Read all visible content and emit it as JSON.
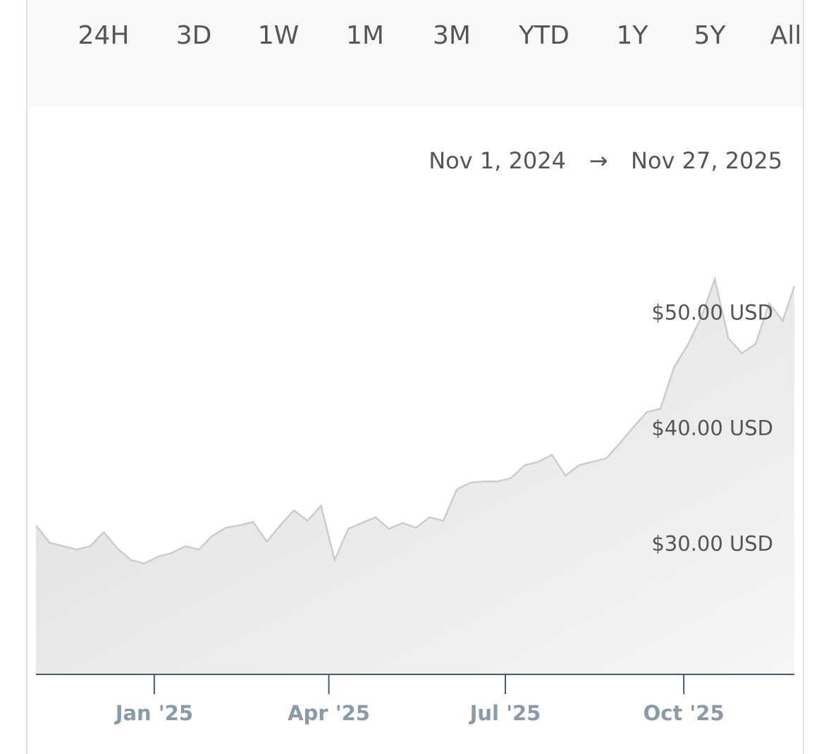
{
  "tabs": [
    "24H",
    "3D",
    "1W",
    "1M",
    "3M",
    "YTD",
    "1Y",
    "5Y",
    "All"
  ],
  "active_tab_index": 6,
  "range_arrow": "→",
  "chart_data": {
    "type": "area",
    "color": "#cccccc",
    "x": [
      "Nov 1, 2024",
      "Nov 8, 2024",
      "Nov 15, 2024",
      "Nov 22, 2024",
      "Nov 29, 2024",
      "Dec 6, 2024",
      "Dec 13, 2024",
      "Dec 20, 2024",
      "Dec 27, 2024",
      "Jan 3, 2025",
      "Jan 10, 2025",
      "Jan 17, 2025",
      "Jan 24, 2025",
      "Jan 31, 2025",
      "Feb 7, 2025",
      "Feb 14, 2025",
      "Feb 21, 2025",
      "Feb 28, 2025",
      "Mar 7, 2025",
      "Mar 14, 2025",
      "Mar 21, 2025",
      "Mar 28, 2025",
      "Apr 4, 2025",
      "Apr 11, 2025",
      "Apr 18, 2025",
      "Apr 25, 2025",
      "May 2, 2025",
      "May 9, 2025",
      "May 16, 2025",
      "May 23, 2025",
      "May 30, 2025",
      "Jun 6, 2025",
      "Jun 13, 2025",
      "Jun 20, 2025",
      "Jun 27, 2025",
      "Jul 4, 2025",
      "Jul 11, 2025",
      "Jul 18, 2025",
      "Jul 25, 2025",
      "Aug 1, 2025",
      "Aug 8, 2025",
      "Aug 15, 2025",
      "Aug 22, 2025",
      "Aug 29, 2025",
      "Sep 5, 2025",
      "Sep 12, 2025",
      "Sep 19, 2025",
      "Sep 26, 2025",
      "Oct 3, 2025",
      "Oct 10, 2025",
      "Oct 17, 2025",
      "Oct 24, 2025",
      "Oct 31, 2025",
      "Nov 7, 2025",
      "Nov 14, 2025",
      "Nov 21, 2025",
      "Nov 27, 2025"
    ],
    "values": [
      31.7,
      30.2,
      29.9,
      29.6,
      29.9,
      31.1,
      29.7,
      28.7,
      28.4,
      29.0,
      29.3,
      29.9,
      29.6,
      30.8,
      31.5,
      31.7,
      32.0,
      30.3,
      31.7,
      33.0,
      32.1,
      33.4,
      28.7,
      31.4,
      31.9,
      32.4,
      31.4,
      31.9,
      31.5,
      32.4,
      32.1,
      34.8,
      35.4,
      35.5,
      35.5,
      35.8,
      36.9,
      37.2,
      37.8,
      36.0,
      36.9,
      37.2,
      37.5,
      38.8,
      40.2,
      41.5,
      41.8,
      45.4,
      47.3,
      49.7,
      53.0,
      47.9,
      46.6,
      47.4,
      50.9,
      49.4,
      52.4
    ],
    "xlim": [
      "Nov 1, 2024",
      "Nov 27, 2025"
    ],
    "xticks": [
      {
        "value": "Jan 1, 2025",
        "label": "Jan '25"
      },
      {
        "value": "Apr 1, 2025",
        "label": "Apr '25"
      },
      {
        "value": "Jul 1, 2025",
        "label": "Jul '25"
      },
      {
        "value": "Oct 1, 2025",
        "label": "Oct '25"
      }
    ],
    "ylim": [
      18.8,
      54.6
    ],
    "yticks": [
      {
        "value": 30,
        "label": "$30.00 USD"
      },
      {
        "value": 40,
        "label": "$40.00 USD"
      },
      {
        "value": 50,
        "label": "$50.00 USD"
      }
    ]
  }
}
